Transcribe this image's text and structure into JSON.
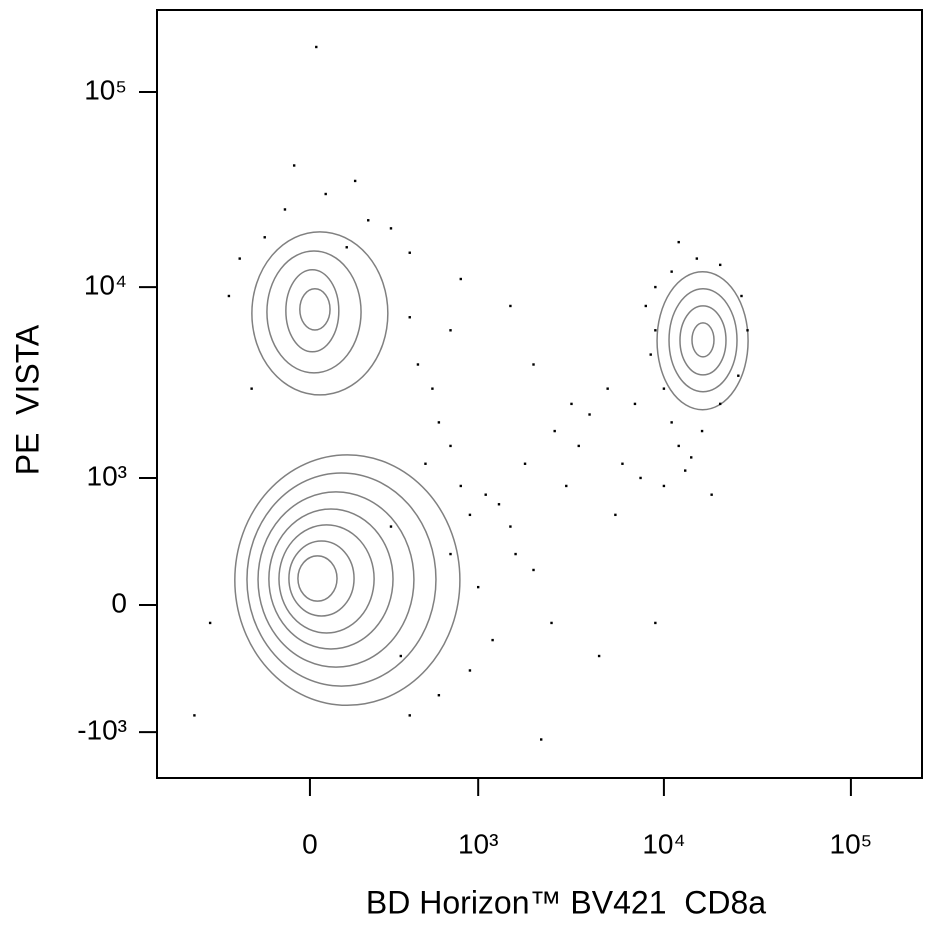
{
  "chart_data": {
    "type": "contour",
    "x_label": "BD Horizon™ BV421  CD8a",
    "y_label": "PE  VISTA",
    "xscale": "biexponential",
    "yscale": "biexponential",
    "xlim": [
      -822,
      240000
    ],
    "ylim": [
      -1778,
      263000
    ],
    "xticks": [
      0,
      {
        "value": 1000,
        "label": "10³"
      },
      {
        "value": 10000,
        "label": "10⁴"
      },
      {
        "value": 100000,
        "label": "10⁵"
      }
    ],
    "yticks": [
      {
        "value": -1000,
        "label": "-10³"
      },
      0,
      {
        "value": 1000,
        "label": "10³"
      },
      {
        "value": 10000,
        "label": "10⁴"
      },
      {
        "value": 100000,
        "label": "10⁵"
      }
    ],
    "contour_color": "#808080",
    "point_color": "#000000",
    "contours": [
      {
        "x": [
          -272,
          791
        ],
        "y": [
          -695,
          1342
        ]
      },
      {
        "x": [
          -219,
          577
        ],
        "y": [
          -521,
          1067
        ]
      },
      {
        "x": [
          -175,
          425
        ],
        "y": [
          -376,
          831
        ]
      },
      {
        "x": [
          -135,
          310
        ],
        "y": [
          -255,
          654
        ]
      },
      {
        "x": [
          -100,
          224
        ],
        "y": [
          -158,
          514
        ]
      },
      {
        "x": [
          -67,
          146
        ],
        "y": [
          -61,
          390
        ]
      },
      {
        "x": [
          -38,
          87
        ],
        "y": [
          22,
          288
        ]
      },
      {
        "x": [
          -199,
          285
        ],
        "y": [
          2785,
          19200
        ]
      },
      {
        "x": [
          -142,
          172
        ],
        "y": [
          3620,
          15300
        ]
      },
      {
        "x": [
          -77,
          93
        ],
        "y": [
          4650,
          12270
        ]
      },
      {
        "x": [
          -32,
          64
        ],
        "y": [
          6020,
          9800
        ]
      },
      {
        "x": [
          9190,
          28200
        ],
        "y": [
          2330,
          11980
        ]
      },
      {
        "x": [
          10650,
          24600
        ],
        "y": [
          2890,
          9800
        ]
      },
      {
        "x": [
          12190,
          21480
        ],
        "y": [
          3535,
          8010
        ]
      },
      {
        "x": [
          14130,
          18530
        ],
        "y": [
          4380,
          6550
        ]
      }
    ],
    "points": {
      "x": [
        -150,
        -80,
        50,
        200,
        -250,
        120,
        300,
        -50,
        150,
        400,
        -300,
        -200,
        20,
        450,
        550,
        600,
        700,
        500,
        800,
        900,
        1100,
        1300,
        1500,
        700,
        1000,
        1200,
        900,
        600,
        400,
        1600,
        2000,
        2500,
        3000,
        3500,
        2600,
        1800,
        3200,
        4000,
        5000,
        6000,
        5500,
        4500,
        9000,
        2000,
        1500,
        800,
        700,
        400,
        300,
        350,
        -400,
        -500,
        2200,
        8000,
        9000,
        10000,
        11000,
        12000,
        14000,
        16000,
        20000,
        25000,
        28000,
        26000,
        20000,
        15000,
        11000,
        9000,
        8500,
        10000,
        13000,
        18000,
        12000,
        7000,
        7500
      ],
      "y": [
        18000,
        25000,
        30000,
        22000,
        14000,
        16000,
        20000,
        42000,
        35000,
        15000,
        9000,
        3000,
        170000,
        4000,
        3000,
        2000,
        1500,
        1200,
        900,
        600,
        800,
        700,
        500,
        300,
        100,
        -200,
        -400,
        -600,
        -800,
        300,
        200,
        -100,
        900,
        1500,
        1800,
        1200,
        2500,
        2200,
        3000,
        1200,
        600,
        -300,
        -100,
        4000,
        8000,
        11000,
        6000,
        7000,
        500,
        -300,
        -100,
        -800,
        -1100,
        8000,
        6000,
        3000,
        2000,
        1500,
        1300,
        1800,
        2500,
        3500,
        6000,
        9000,
        13000,
        14000,
        12000,
        10000,
        4500,
        900,
        1100,
        800,
        17000,
        2500,
        1000
      ]
    }
  }
}
